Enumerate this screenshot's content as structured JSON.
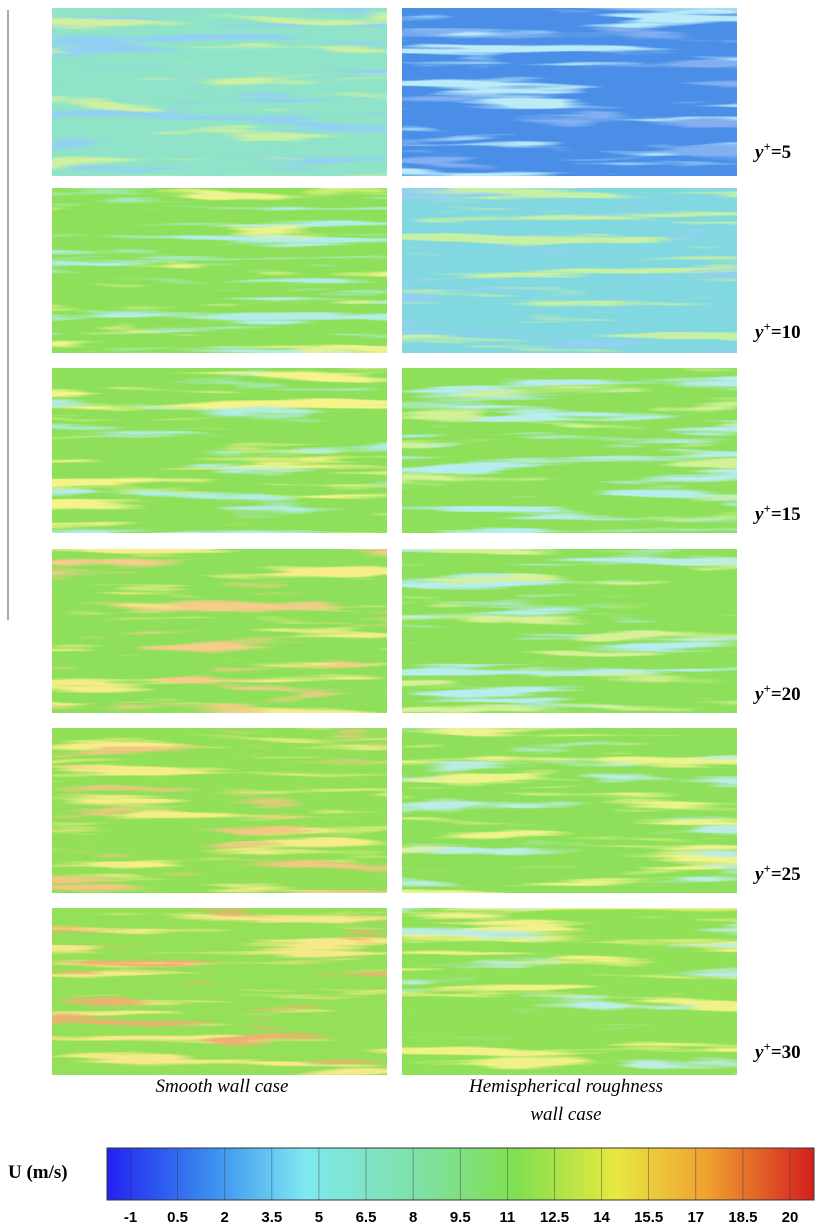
{
  "row_labels": [
    {
      "var": "y",
      "sup": "+",
      "eq": "=5"
    },
    {
      "var": "y",
      "sup": "+",
      "eq": "=10"
    },
    {
      "var": "y",
      "sup": "+",
      "eq": "=15"
    },
    {
      "var": "y",
      "sup": "+",
      "eq": "=20"
    },
    {
      "var": "y",
      "sup": "+",
      "eq": "=25"
    },
    {
      "var": "y",
      "sup": "+",
      "eq": "=30"
    }
  ],
  "captions": {
    "left": [
      "Smooth wall case"
    ],
    "right": [
      "Hemispherical roughness",
      "wall case"
    ]
  },
  "colorbar": {
    "label": "U (m/s)",
    "ticks": [
      -1,
      0.5,
      2,
      3.5,
      5,
      6.5,
      8,
      9.5,
      11,
      12.5,
      14,
      15.5,
      17,
      18.5,
      20
    ]
  }
}
